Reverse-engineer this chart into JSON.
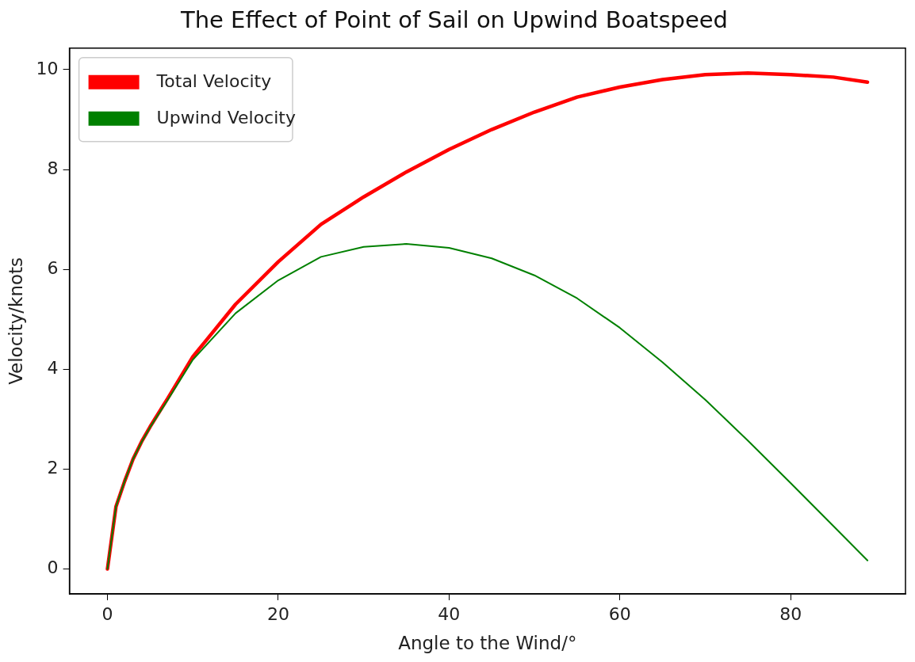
{
  "chart_data": {
    "type": "line",
    "title": "The Effect of Point of Sail on Upwind Boatspeed",
    "xlabel": "Angle to the Wind/°",
    "ylabel": "Velocity/knots",
    "x": [
      0,
      1,
      2,
      3,
      4,
      5,
      7,
      10,
      15,
      20,
      25,
      30,
      35,
      40,
      45,
      50,
      55,
      60,
      65,
      70,
      75,
      80,
      85,
      89
    ],
    "series": [
      {
        "name": "Total Velocity",
        "color": "#ff0000",
        "values": [
          0,
          1.25,
          1.75,
          2.2,
          2.55,
          2.85,
          3.4,
          4.25,
          5.3,
          6.15,
          6.9,
          7.45,
          7.95,
          8.4,
          8.8,
          9.15,
          9.45,
          9.65,
          9.8,
          9.9,
          9.93,
          9.9,
          9.85,
          9.75
        ]
      },
      {
        "name": "Upwind Velocity",
        "color": "#008000",
        "values": [
          0,
          1.25,
          1.75,
          2.2,
          2.54,
          2.84,
          3.37,
          4.19,
          5.12,
          5.78,
          6.25,
          6.45,
          6.51,
          6.43,
          6.22,
          5.88,
          5.42,
          4.83,
          4.14,
          3.39,
          2.57,
          1.72,
          0.86,
          0.17
        ]
      }
    ],
    "xlim": [
      -4.45,
      93.45
    ],
    "xticks": [
      0,
      20,
      40,
      60,
      80
    ],
    "ylim": [
      -0.5,
      10.43
    ],
    "yticks": [
      0,
      2,
      4,
      6,
      8,
      10
    ],
    "grid": false,
    "legend": "top left",
    "marker": "none",
    "line_style": "solid"
  }
}
